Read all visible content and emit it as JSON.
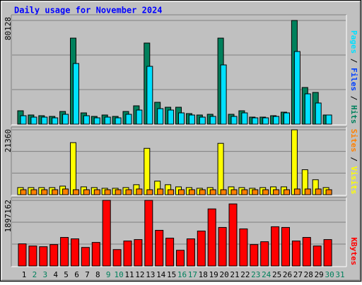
{
  "chart_data": [
    {
      "type": "bar",
      "title": "Daily usage for November 2024",
      "ylim": [
        0,
        80128
      ],
      "yticks": [
        80128
      ],
      "legend": [
        {
          "text": "Pages",
          "color": "#00E0FF"
        },
        {
          "text": "Files",
          "color": "#0040FF"
        },
        {
          "text": "Hits",
          "color": "#00805C"
        }
      ],
      "series": [
        {
          "name": "Hits",
          "color": "#00805C",
          "values": [
            10355,
            7085,
            6540,
            5995,
            9810,
            66490,
            8720,
            5995,
            7085,
            5995,
            9810,
            14170,
            62675,
            16895,
            13080,
            13080,
            8175,
            7085,
            7630,
            66490,
            7630,
            10355,
            5450,
            5450,
            6540,
            9265,
            80128,
            28340,
            24525,
            7085,
            null
          ]
        },
        {
          "name": "Pages",
          "color": "#00E0FF",
          "values": [
            6540,
            5450,
            5450,
            4905,
            7630,
            46870,
            6540,
            4905,
            5450,
            4905,
            7630,
            10900,
            44690,
            11990,
            10900,
            8720,
            7085,
            5450,
            5995,
            45780,
            5995,
            8720,
            4905,
            4905,
            5995,
            8720,
            56135,
            23435,
            16350,
            7085,
            null
          ]
        }
      ]
    },
    {
      "type": "bar",
      "ylim": [
        0,
        21360
      ],
      "yticks": [
        21360
      ],
      "legend": [
        {
          "text": "Sites",
          "color": "#FF8000"
        },
        {
          "text": "Visits",
          "color": "#FFFF00"
        }
      ],
      "series": [
        {
          "name": "Visits",
          "color": "#FFFF00",
          "values": [
            2350,
            2350,
            2350,
            2350,
            2820,
            17130,
            2580,
            2350,
            2110,
            2110,
            2350,
            3290,
            15260,
            4460,
            3290,
            2580,
            2350,
            2110,
            2350,
            16900,
            2580,
            2350,
            2110,
            2350,
            2580,
            2580,
            21360,
            8220,
            4930,
            2350,
            null
          ]
        },
        {
          "name": "Sites",
          "color": "#FF8000",
          "values": [
            1640,
            1640,
            1640,
            1640,
            1880,
            1640,
            1640,
            1640,
            1640,
            1640,
            1640,
            1880,
            1640,
            1880,
            1640,
            1640,
            1640,
            1640,
            1640,
            1640,
            1640,
            1640,
            1640,
            1640,
            1640,
            1640,
            1880,
            1880,
            1880,
            1640,
            null
          ]
        }
      ]
    },
    {
      "type": "bar",
      "ylim": [
        0,
        1897162
      ],
      "yticks": [
        1897162
      ],
      "legend": [
        {
          "text": "KBytes",
          "color": "#FF0000"
        }
      ],
      "categories": [
        1,
        2,
        3,
        4,
        5,
        6,
        7,
        8,
        9,
        10,
        11,
        12,
        13,
        14,
        15,
        16,
        17,
        18,
        19,
        20,
        21,
        22,
        23,
        24,
        25,
        26,
        27,
        28,
        29,
        30,
        31
      ],
      "category_colors": [
        "#000000",
        "#00805C",
        "#00805C",
        "#000000",
        "#000000",
        "#000000",
        "#000000",
        "#000000",
        "#00805C",
        "#00805C",
        "#000000",
        "#000000",
        "#000000",
        "#000000",
        "#000000",
        "#00805C",
        "#00805C",
        "#000000",
        "#000000",
        "#000000",
        "#000000",
        "#000000",
        "#00805C",
        "#00805C",
        "#000000",
        "#000000",
        "#000000",
        "#000000",
        "#000000",
        "#00805C",
        "#00805C"
      ],
      "series": [
        {
          "name": "KBytes",
          "color": "#FF0000",
          "values": [
            639251,
            577388,
            556767,
            618630,
            824840,
            783598,
            536146,
            680493,
            1897162,
            474283,
            721735,
            762977,
            1897162,
            1031050,
            804219,
            453662,
            783598,
            1010429,
            1649680,
            1113534,
            1794027,
            1072292,
            618630,
            701114,
            1134155,
            1113534,
            721735,
            824840,
            577388,
            762977,
            null
          ]
        }
      ]
    }
  ]
}
